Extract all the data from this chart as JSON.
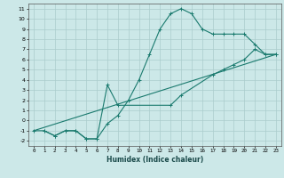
{
  "title": "",
  "xlabel": "Humidex (Indice chaleur)",
  "bg_color": "#cce8e8",
  "grid_color": "#aacccc",
  "line_color": "#1a7a6e",
  "xlim": [
    -0.5,
    23.5
  ],
  "ylim": [
    -2.5,
    11.5
  ],
  "xticks": [
    0,
    1,
    2,
    3,
    4,
    5,
    6,
    7,
    8,
    9,
    10,
    11,
    12,
    13,
    14,
    15,
    16,
    17,
    18,
    19,
    20,
    21,
    22,
    23
  ],
  "yticks": [
    -2,
    -1,
    0,
    1,
    2,
    3,
    4,
    5,
    6,
    7,
    8,
    9,
    10,
    11
  ],
  "line1_x": [
    0,
    1,
    2,
    3,
    4,
    5,
    6,
    7,
    8,
    9,
    10,
    11,
    12,
    13,
    14,
    15,
    16,
    17,
    18,
    19,
    20,
    21,
    22,
    23
  ],
  "line1_y": [
    -1,
    -1,
    -1.5,
    -1,
    -1,
    -1.8,
    -1.8,
    -0.3,
    0.5,
    2,
    4,
    6.5,
    9,
    10.5,
    11,
    10.5,
    9,
    8.5,
    8.5,
    8.5,
    8.5,
    7.5,
    6.5,
    6.5
  ],
  "line2_x": [
    0,
    23
  ],
  "line2_y": [
    -1,
    6.5
  ],
  "line3_x": [
    1,
    2,
    3,
    4,
    5,
    6,
    7,
    8,
    13,
    14,
    17,
    18,
    19,
    20,
    21,
    22,
    23
  ],
  "line3_y": [
    -1,
    -1.5,
    -1,
    -1,
    -1.8,
    -1.8,
    3.5,
    1.5,
    1.5,
    2.5,
    4.5,
    5,
    5.5,
    6,
    7,
    6.5,
    6.5
  ]
}
